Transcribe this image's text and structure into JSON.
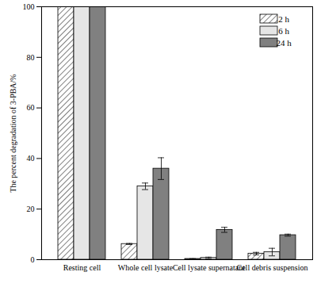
{
  "chart_data": {
    "type": "bar",
    "categories": [
      "Resting cell",
      "Whole cell lysate",
      "Cell lysate supernatant",
      "Cell debris suspension"
    ],
    "series": [
      {
        "name": "2 h",
        "color": "#ffffff",
        "values": [
          100,
          6.2,
          0.3,
          2.4
        ],
        "errors": [
          0,
          0.2,
          0.1,
          0.5
        ]
      },
      {
        "name": "6 h",
        "color": "#e6e6e6",
        "values": [
          100,
          29,
          0.7,
          3.0
        ],
        "errors": [
          0,
          1.3,
          0.3,
          1.5
        ]
      },
      {
        "name": "24 h",
        "color": "#808080",
        "values": [
          100,
          36,
          11.8,
          9.7
        ],
        "errors": [
          0,
          4.3,
          1.0,
          0.4
        ]
      }
    ],
    "y_label": "The percent degradation of 3-PBA/%",
    "ylim": [
      0,
      100
    ],
    "yticks": [
      0,
      20,
      40,
      60,
      80,
      100
    ],
    "legend": "top-right",
    "grid": false
  }
}
